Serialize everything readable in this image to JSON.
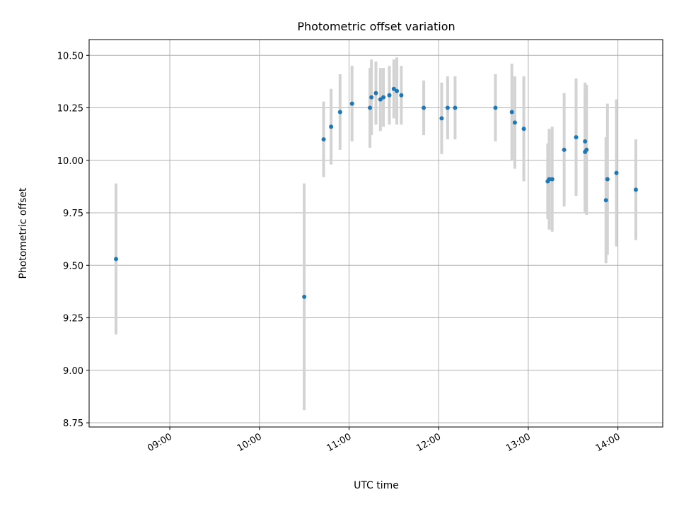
{
  "chart_data": {
    "type": "scatter",
    "title": "Photometric offset variation",
    "xlabel": "UTC time",
    "ylabel": "Photometric offset",
    "x_tick_labels": [
      "09:00",
      "10:00",
      "11:00",
      "12:00",
      "13:00",
      "14:00"
    ],
    "y_tick_labels": [
      "8.75",
      "9.00",
      "9.25",
      "9.50",
      "9.75",
      "10.00",
      "10.25",
      "10.50"
    ],
    "ylim": [
      8.73,
      10.575
    ],
    "xlim": [
      "08:06",
      "14:30"
    ],
    "grid": true,
    "marker_color": "#1f77b4",
    "errorbar_color": "#d3d3d3",
    "points": [
      {
        "t": "08:24",
        "y": 9.53,
        "yerr": 0.36
      },
      {
        "t": "10:30",
        "y": 9.35,
        "yerr": 0.54
      },
      {
        "t": "10:43",
        "y": 10.1,
        "yerr": 0.18
      },
      {
        "t": "10:48",
        "y": 10.16,
        "yerr": 0.18
      },
      {
        "t": "10:54",
        "y": 10.23,
        "yerr": 0.18
      },
      {
        "t": "11:02",
        "y": 10.27,
        "yerr": 0.18
      },
      {
        "t": "11:14",
        "y": 10.25,
        "yerr": 0.19
      },
      {
        "t": "11:15",
        "y": 10.3,
        "yerr": 0.18
      },
      {
        "t": "11:18",
        "y": 10.32,
        "yerr": 0.15
      },
      {
        "t": "11:21",
        "y": 10.29,
        "yerr": 0.15
      },
      {
        "t": "11:23",
        "y": 10.3,
        "yerr": 0.14
      },
      {
        "t": "11:27",
        "y": 10.31,
        "yerr": 0.14
      },
      {
        "t": "11:30",
        "y": 10.34,
        "yerr": 0.14
      },
      {
        "t": "11:32",
        "y": 10.33,
        "yerr": 0.16
      },
      {
        "t": "11:35",
        "y": 10.31,
        "yerr": 0.14
      },
      {
        "t": "11:50",
        "y": 10.25,
        "yerr": 0.13
      },
      {
        "t": "12:02",
        "y": 10.2,
        "yerr": 0.17
      },
      {
        "t": "12:06",
        "y": 10.25,
        "yerr": 0.15
      },
      {
        "t": "12:11",
        "y": 10.25,
        "yerr": 0.15
      },
      {
        "t": "12:38",
        "y": 10.25,
        "yerr": 0.16
      },
      {
        "t": "12:49",
        "y": 10.23,
        "yerr": 0.23
      },
      {
        "t": "12:51",
        "y": 10.18,
        "yerr": 0.22
      },
      {
        "t": "12:57",
        "y": 10.15,
        "yerr": 0.25
      },
      {
        "t": "13:13",
        "y": 9.9,
        "yerr": 0.18
      },
      {
        "t": "13:14",
        "y": 9.91,
        "yerr": 0.24
      },
      {
        "t": "13:16",
        "y": 9.91,
        "yerr": 0.25
      },
      {
        "t": "13:24",
        "y": 10.05,
        "yerr": 0.27
      },
      {
        "t": "13:32",
        "y": 10.11,
        "yerr": 0.28
      },
      {
        "t": "13:38",
        "y": 10.09,
        "yerr": 0.28
      },
      {
        "t": "13:38",
        "y": 10.04,
        "yerr": 0.29
      },
      {
        "t": "13:39",
        "y": 10.05,
        "yerr": 0.31
      },
      {
        "t": "13:52",
        "y": 9.81,
        "yerr": 0.3
      },
      {
        "t": "13:53",
        "y": 9.91,
        "yerr": 0.36
      },
      {
        "t": "13:59",
        "y": 9.94,
        "yerr": 0.35
      },
      {
        "t": "14:12",
        "y": 9.86,
        "yerr": 0.24
      }
    ]
  }
}
